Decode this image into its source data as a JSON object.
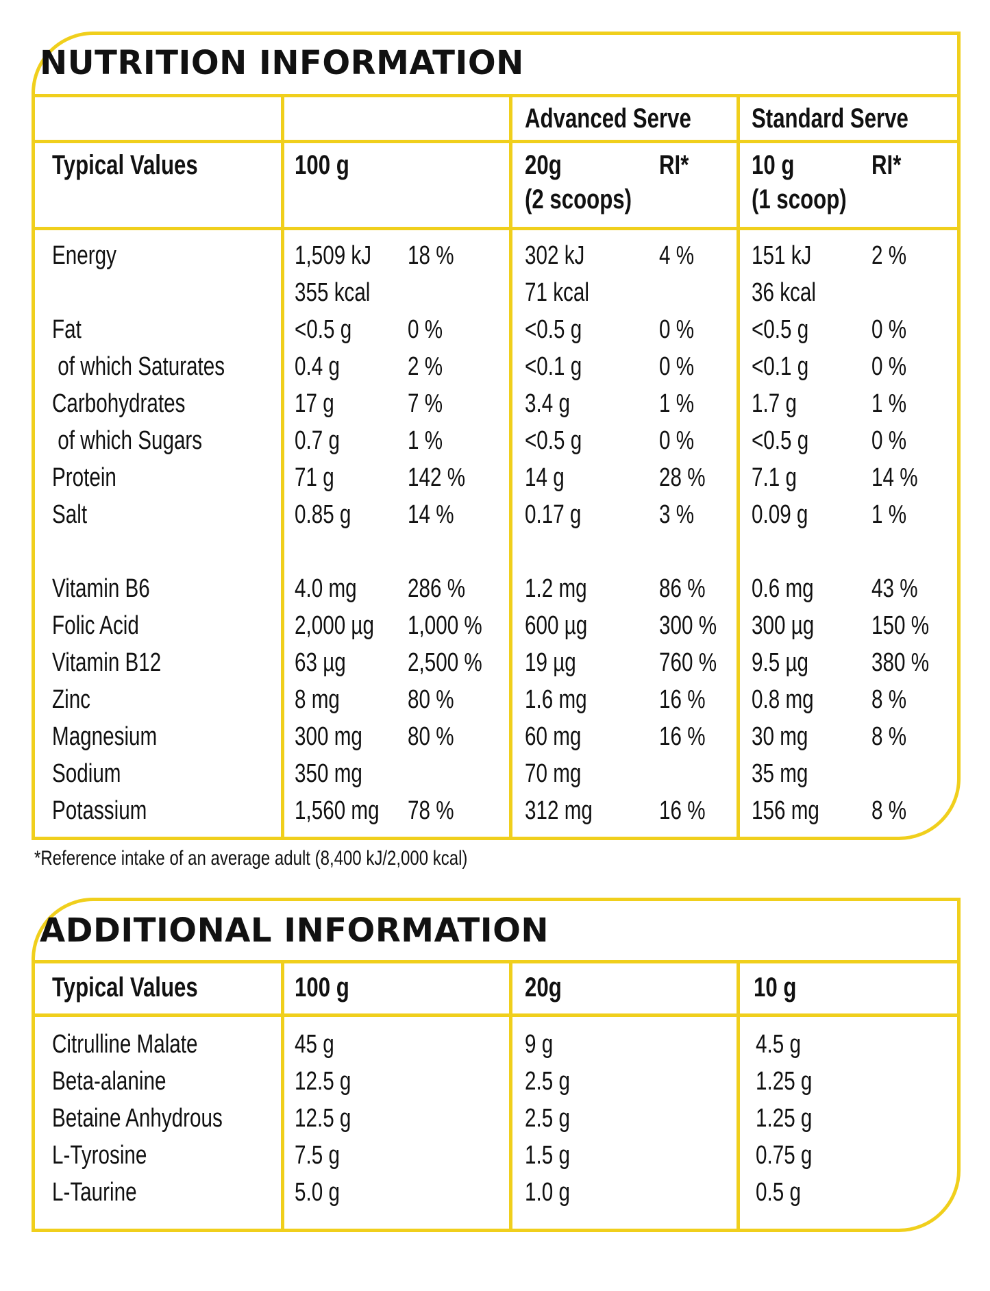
{
  "colors": {
    "border": "#f0cf1c",
    "text": "#111111",
    "background": "#ffffff"
  },
  "nutrition": {
    "title": "NUTRITION INFORMATION",
    "header": {
      "advanced_serve": "Advanced Serve",
      "standard_serve": "Standard Serve",
      "typical_values": "Typical Values",
      "per_100g": "100 g",
      "adv_amount": "20g",
      "adv_scoops": "(2 scoops)",
      "adv_ri": "RI*",
      "std_amount": "10 g",
      "std_scoops": "(1 scoop)",
      "std_ri": "RI*"
    },
    "rows": [
      {
        "label": "Energy",
        "v100": "1,509 kJ",
        "ri100": "18 %",
        "v20": "302 kJ",
        "ri20": "4 %",
        "v10": "151 kJ",
        "ri10": "2 %"
      },
      {
        "label": "",
        "v100": "355 kcal",
        "ri100": "",
        "v20": "71 kcal",
        "ri20": "",
        "v10": "36 kcal",
        "ri10": ""
      },
      {
        "label": "Fat",
        "v100": "<0.5 g",
        "ri100": "0 %",
        "v20": "<0.5 g",
        "ri20": "0 %",
        "v10": "<0.5 g",
        "ri10": "0 %"
      },
      {
        "label": " of which Saturates",
        "v100": "0.4 g",
        "ri100": "2 %",
        "v20": "<0.1 g",
        "ri20": "0 %",
        "v10": "<0.1 g",
        "ri10": "0 %"
      },
      {
        "label": "Carbohydrates",
        "v100": "17 g",
        "ri100": "7 %",
        "v20": "3.4 g",
        "ri20": "1 %",
        "v10": "1.7 g",
        "ri10": "1 %"
      },
      {
        "label": " of which Sugars",
        "v100": "0.7 g",
        "ri100": "1 %",
        "v20": "<0.5 g",
        "ri20": "0 %",
        "v10": "<0.5 g",
        "ri10": "0 %"
      },
      {
        "label": "Protein",
        "v100": "71 g",
        "ri100": "142 %",
        "v20": "14 g",
        "ri20": "28 %",
        "v10": "7.1 g",
        "ri10": "14 %"
      },
      {
        "label": "Salt",
        "v100": "0.85 g",
        "ri100": "14 %",
        "v20": "0.17 g",
        "ri20": "3 %",
        "v10": "0.09 g",
        "ri10": "1 %"
      },
      {
        "label": "",
        "v100": "",
        "ri100": "",
        "v20": "",
        "ri20": "",
        "v10": "",
        "ri10": ""
      },
      {
        "label": "Vitamin B6",
        "v100": "4.0 mg",
        "ri100": "286 %",
        "v20": "1.2 mg",
        "ri20": "86 %",
        "v10": "0.6 mg",
        "ri10": "43 %"
      },
      {
        "label": "Folic Acid",
        "v100": "2,000 µg",
        "ri100": "1,000 %",
        "v20": "600 µg",
        "ri20": "300 %",
        "v10": "300 µg",
        "ri10": "150 %"
      },
      {
        "label": "Vitamin B12",
        "v100": "63 µg",
        "ri100": "2,500 %",
        "v20": "19 µg",
        "ri20": "760 %",
        "v10": "9.5 µg",
        "ri10": "380 %"
      },
      {
        "label": "Zinc",
        "v100": "8 mg",
        "ri100": "80 %",
        "v20": "1.6 mg",
        "ri20": "16 %",
        "v10": "0.8 mg",
        "ri10": "8 %"
      },
      {
        "label": "Magnesium",
        "v100": "300 mg",
        "ri100": "80 %",
        "v20": "60 mg",
        "ri20": "16 %",
        "v10": "30 mg",
        "ri10": "8 %"
      },
      {
        "label": "Sodium",
        "v100": "350 mg",
        "ri100": "",
        "v20": "70 mg",
        "ri20": "",
        "v10": "35 mg",
        "ri10": ""
      },
      {
        "label": "Potassium",
        "v100": "1,560 mg",
        "ri100": "78 %",
        "v20": "312 mg",
        "ri20": "16 %",
        "v10": "156 mg",
        "ri10": "8 %"
      }
    ],
    "footnote": "*Reference intake of an average adult (8,400 kJ/2,000 kcal)"
  },
  "additional": {
    "title": "ADDITIONAL INFORMATION",
    "header": {
      "typical_values": "Typical Values",
      "per_100g": "100 g",
      "per_20g": "20g",
      "per_10g": "10 g"
    },
    "rows": [
      {
        "label": "Citrulline Malate",
        "v100": "45 g",
        "v20": "9 g",
        "v10": "4.5 g"
      },
      {
        "label": "Beta-alanine",
        "v100": "12.5 g",
        "v20": "2.5 g",
        "v10": "1.25 g"
      },
      {
        "label": "Betaine Anhydrous",
        "v100": "12.5 g",
        "v20": "2.5 g",
        "v10": "1.25 g"
      },
      {
        "label": "L-Tyrosine",
        "v100": "7.5 g",
        "v20": "1.5 g",
        "v10": "0.75 g"
      },
      {
        "label": "L-Taurine",
        "v100": "5.0 g",
        "v20": "1.0 g",
        "v10": "0.5 g"
      }
    ]
  }
}
